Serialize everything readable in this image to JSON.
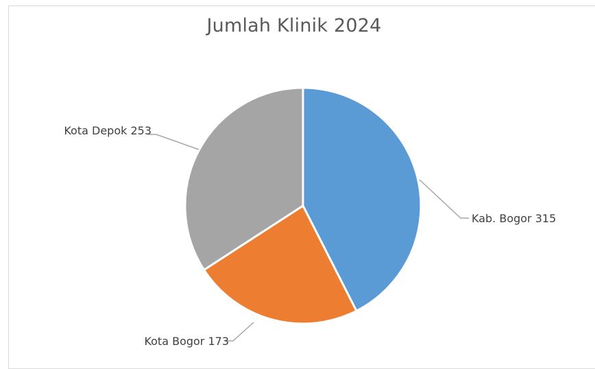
{
  "chart_data": {
    "type": "pie",
    "title": "Jumlah Klinik 2024",
    "slices": [
      {
        "label": "Kab. Bogor",
        "value": 315,
        "color": "#5b9bd5"
      },
      {
        "label": "Kota Bogor",
        "value": 173,
        "color": "#ed7d31"
      },
      {
        "label": "Kota Depok",
        "value": 253,
        "color": "#a5a5a5"
      }
    ],
    "data_labels": [
      "Kab. Bogor 315",
      "Kota Bogor 173",
      "Kota Depok 253"
    ],
    "legend": "none",
    "start_angle": "12 o'clock",
    "direction": "clockwise"
  }
}
